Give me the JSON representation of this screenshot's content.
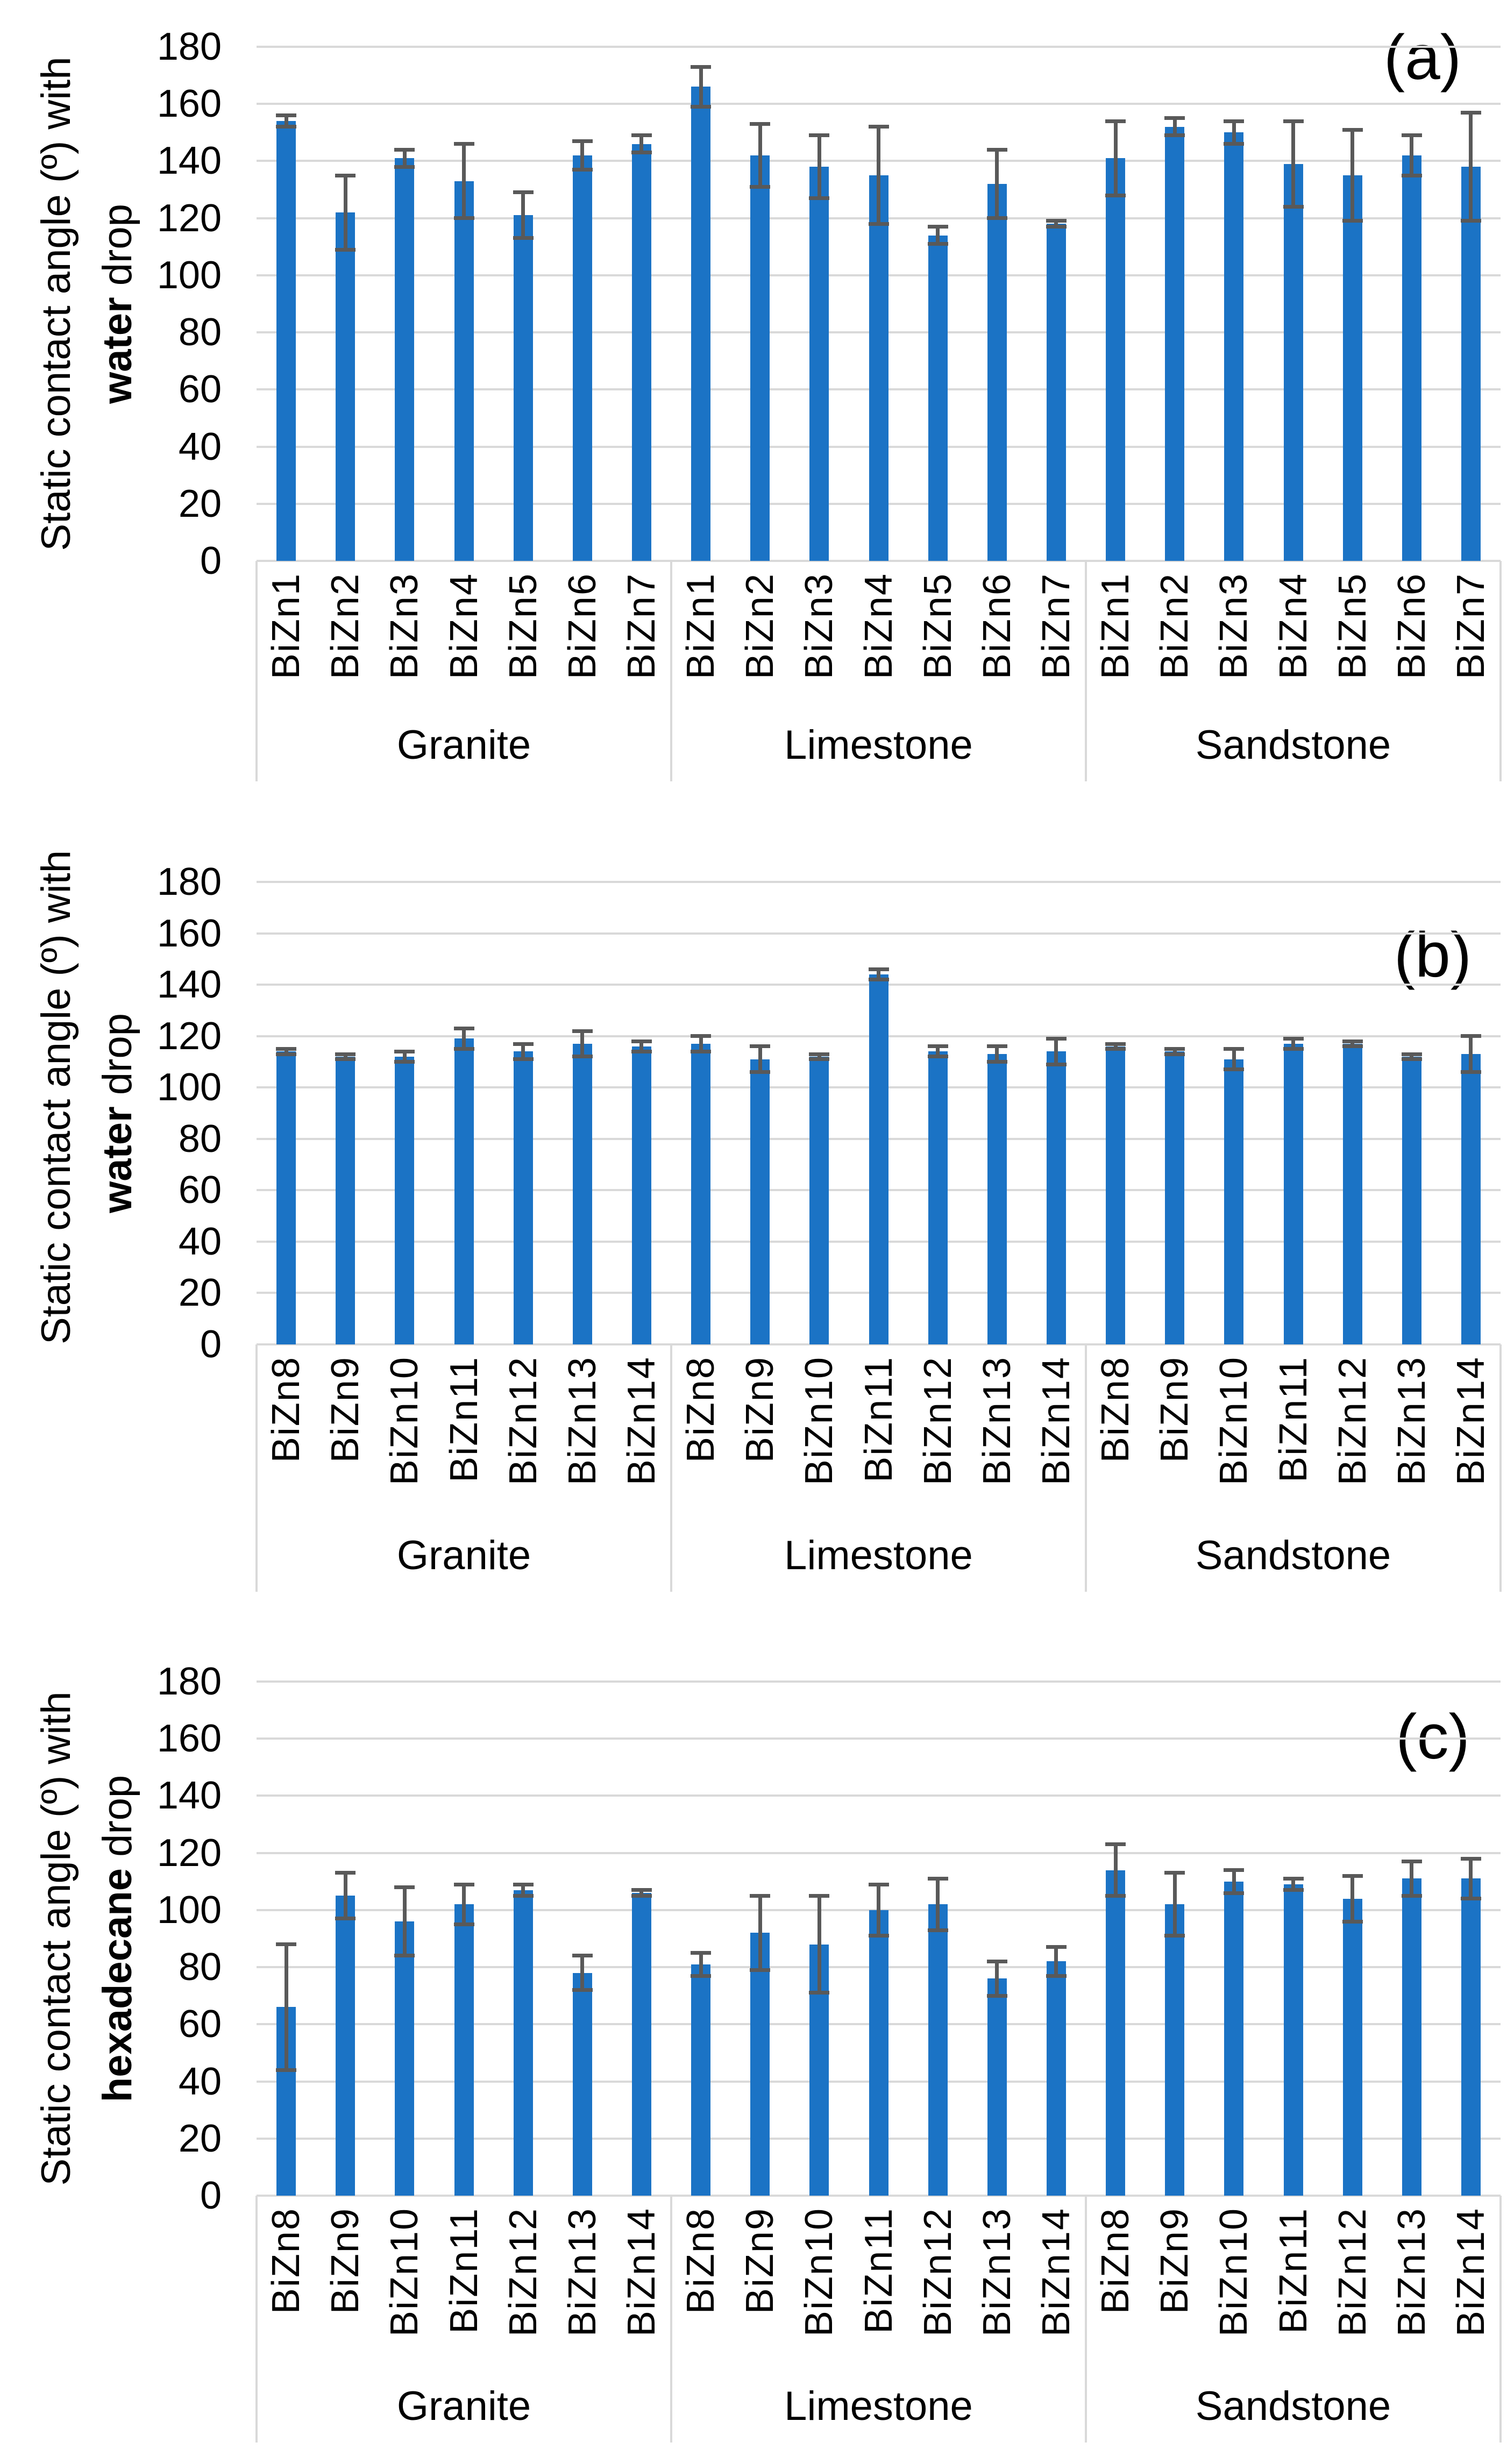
{
  "colors": {
    "bar": "#1B73C5",
    "error_bar": "#595959",
    "gridline": "#D9D9D9",
    "axis_box_border": "#D9D9D9",
    "text": "#000000",
    "background": "#FFFFFF"
  },
  "chart_data": [
    {
      "type": "bar",
      "panel_label": "(a)",
      "ylabel_line1": "Static contact angle (º) with",
      "ylabel_bold_word": "water",
      "ylabel_tail": " drop",
      "ylim": [
        0,
        180
      ],
      "ytick_interval": 20,
      "ytick_labels": [
        "180",
        "160",
        "140",
        "120",
        "100",
        "80",
        "60",
        "40",
        "20",
        "0"
      ],
      "grid": true,
      "legend": false,
      "groups": [
        {
          "name": "Granite",
          "categories": [
            "BiZn1",
            "BiZn2",
            "BiZn3",
            "BiZn4",
            "BiZn5",
            "BiZn6",
            "BiZn7"
          ],
          "values": [
            154,
            122,
            141,
            133,
            121,
            142,
            146
          ],
          "errors": [
            2,
            13,
            3,
            13,
            8,
            5,
            3
          ]
        },
        {
          "name": "Limestone",
          "categories": [
            "BiZn1",
            "BiZn2",
            "BiZn3",
            "BiZn4",
            "BiZn5",
            "BiZn6",
            "BiZn7"
          ],
          "values": [
            166,
            142,
            138,
            135,
            114,
            132,
            118
          ],
          "errors": [
            7,
            11,
            11,
            17,
            3,
            12,
            1
          ]
        },
        {
          "name": "Sandstone",
          "categories": [
            "BiZn1",
            "BiZn2",
            "BiZn3",
            "BiZn4",
            "BiZn5",
            "BiZn6",
            "BiZn7"
          ],
          "values": [
            141,
            152,
            150,
            139,
            135,
            142,
            138
          ],
          "errors": [
            13,
            3,
            4,
            15,
            16,
            7,
            19
          ]
        }
      ]
    },
    {
      "type": "bar",
      "panel_label": "(b)",
      "ylabel_line1": "Static contact angle (º) with",
      "ylabel_bold_word": "water",
      "ylabel_tail": " drop",
      "ylim": [
        0,
        180
      ],
      "ytick_interval": 20,
      "ytick_labels": [
        "180",
        "160",
        "140",
        "120",
        "100",
        "80",
        "60",
        "40",
        "20",
        "0"
      ],
      "grid": true,
      "legend": false,
      "groups": [
        {
          "name": "Granite",
          "categories": [
            "BiZn8",
            "BiZn9",
            "BiZn10",
            "BiZn11",
            "BiZn12",
            "BiZn13",
            "BiZn14"
          ],
          "values": [
            114,
            112,
            112,
            119,
            114,
            117,
            116
          ],
          "errors": [
            1,
            1,
            2,
            4,
            3,
            5,
            2
          ]
        },
        {
          "name": "Limestone",
          "categories": [
            "BiZn8",
            "BiZn9",
            "BiZn10",
            "BiZn11",
            "BiZn12",
            "BiZn13",
            "BiZn14"
          ],
          "values": [
            117,
            111,
            112,
            144,
            114,
            113,
            114
          ],
          "errors": [
            3,
            5,
            1,
            2,
            2,
            3,
            5
          ]
        },
        {
          "name": "Sandstone",
          "categories": [
            "BiZn8",
            "BiZn9",
            "BiZn10",
            "BiZn11",
            "BiZn12",
            "BiZn13",
            "BiZn14"
          ],
          "values": [
            116,
            114,
            111,
            117,
            117,
            112,
            113
          ],
          "errors": [
            1,
            1,
            4,
            2,
            1,
            1,
            7
          ]
        }
      ]
    },
    {
      "type": "bar",
      "panel_label": "(c)",
      "ylabel_line1": "Static contact angle (º) with",
      "ylabel_bold_word": "hexadecane",
      "ylabel_tail": " drop",
      "ylim": [
        0,
        180
      ],
      "ytick_interval": 20,
      "ytick_labels": [
        "180",
        "160",
        "140",
        "120",
        "100",
        "80",
        "60",
        "40",
        "20",
        "0"
      ],
      "grid": true,
      "legend": false,
      "groups": [
        {
          "name": "Granite",
          "categories": [
            "BiZn8",
            "BiZn9",
            "BiZn10",
            "BiZn11",
            "BiZn12",
            "BiZn13",
            "BiZn14"
          ],
          "values": [
            66,
            105,
            96,
            102,
            107,
            78,
            106
          ],
          "errors": [
            22,
            8,
            12,
            7,
            2,
            6,
            1
          ]
        },
        {
          "name": "Limestone",
          "categories": [
            "BiZn8",
            "BiZn9",
            "BiZn10",
            "BiZn11",
            "BiZn12",
            "BiZn13",
            "BiZn14"
          ],
          "values": [
            81,
            92,
            88,
            100,
            102,
            76,
            82
          ],
          "errors": [
            4,
            13,
            17,
            9,
            9,
            6,
            5
          ]
        },
        {
          "name": "Sandstone",
          "categories": [
            "BiZn8",
            "BiZn9",
            "BiZn10",
            "BiZn11",
            "BiZn12",
            "BiZn13",
            "BiZn14"
          ],
          "values": [
            114,
            102,
            110,
            109,
            104,
            111,
            111
          ],
          "errors": [
            9,
            11,
            4,
            2,
            8,
            6,
            7
          ]
        }
      ]
    }
  ]
}
